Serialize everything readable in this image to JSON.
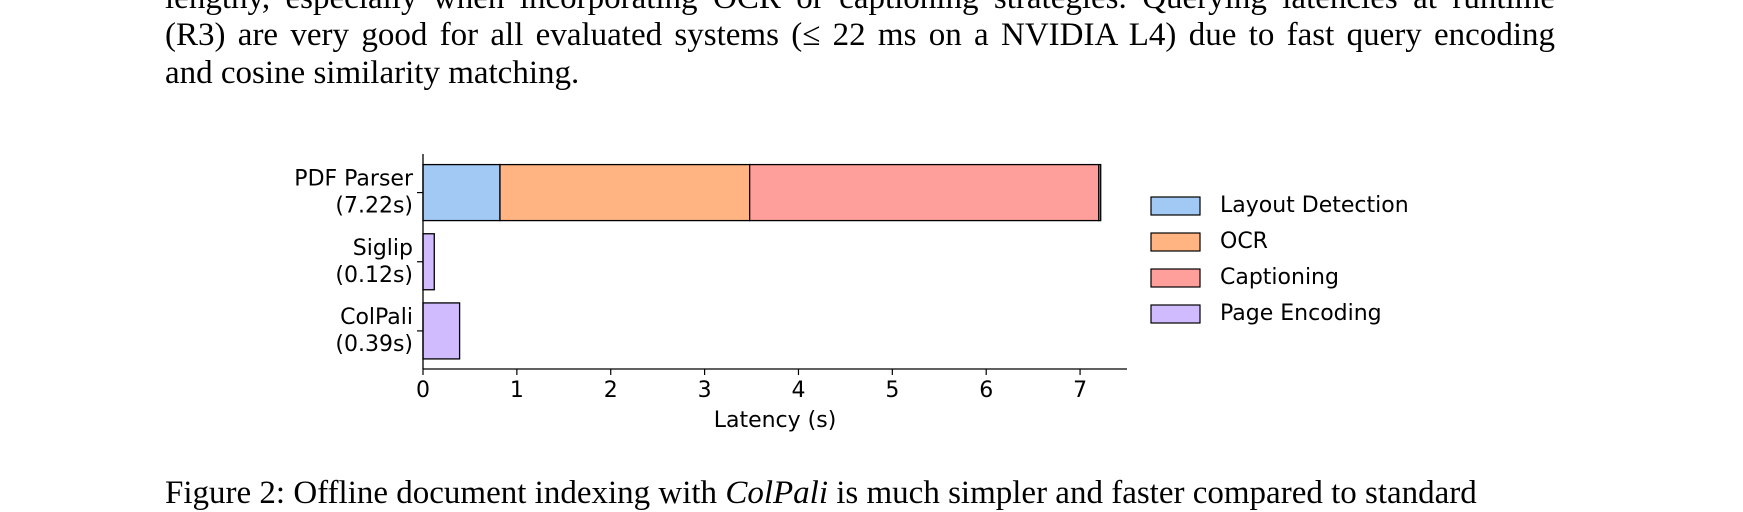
{
  "paragraph": {
    "lines": [
      "lengthy, especially when incorporating OCR or captioning strategies. Querying latencies at runtime",
      "(R3) are very good for all evaluated systems (≤ 22 ms on a NVIDIA L4) due to fast query encoding",
      "and cosine similarity matching."
    ]
  },
  "chart_data": {
    "type": "stacked-barh",
    "categories": [
      [
        "PDF Parser",
        "(7.22s)"
      ],
      [
        "Siglip",
        "(0.12s)"
      ],
      [
        "ColPali",
        "(0.39s)"
      ]
    ],
    "series": [
      {
        "name": "Layout Detection",
        "color": "#a1c9f4",
        "values": [
          0.82,
          null,
          null
        ]
      },
      {
        "name": "OCR",
        "color": "#ffb482",
        "values": [
          2.66,
          null,
          null
        ]
      },
      {
        "name": "Captioning",
        "color": "#ff9f9b",
        "values": [
          3.72,
          null,
          null
        ]
      },
      {
        "name": "Page Encoding",
        "color": "#d0bbff",
        "values": [
          0.02,
          0.12,
          0.39
        ]
      }
    ],
    "xlim": [
      0,
      7.5
    ],
    "xticks": [
      0,
      1,
      2,
      3,
      4,
      5,
      6,
      7
    ],
    "xlabel": "Latency (s)",
    "legend": "right"
  },
  "caption": {
    "before": "Figure 2: Offline document indexing with ",
    "italic": "ColPali",
    "after": " is much simpler and faster compared to standard"
  }
}
